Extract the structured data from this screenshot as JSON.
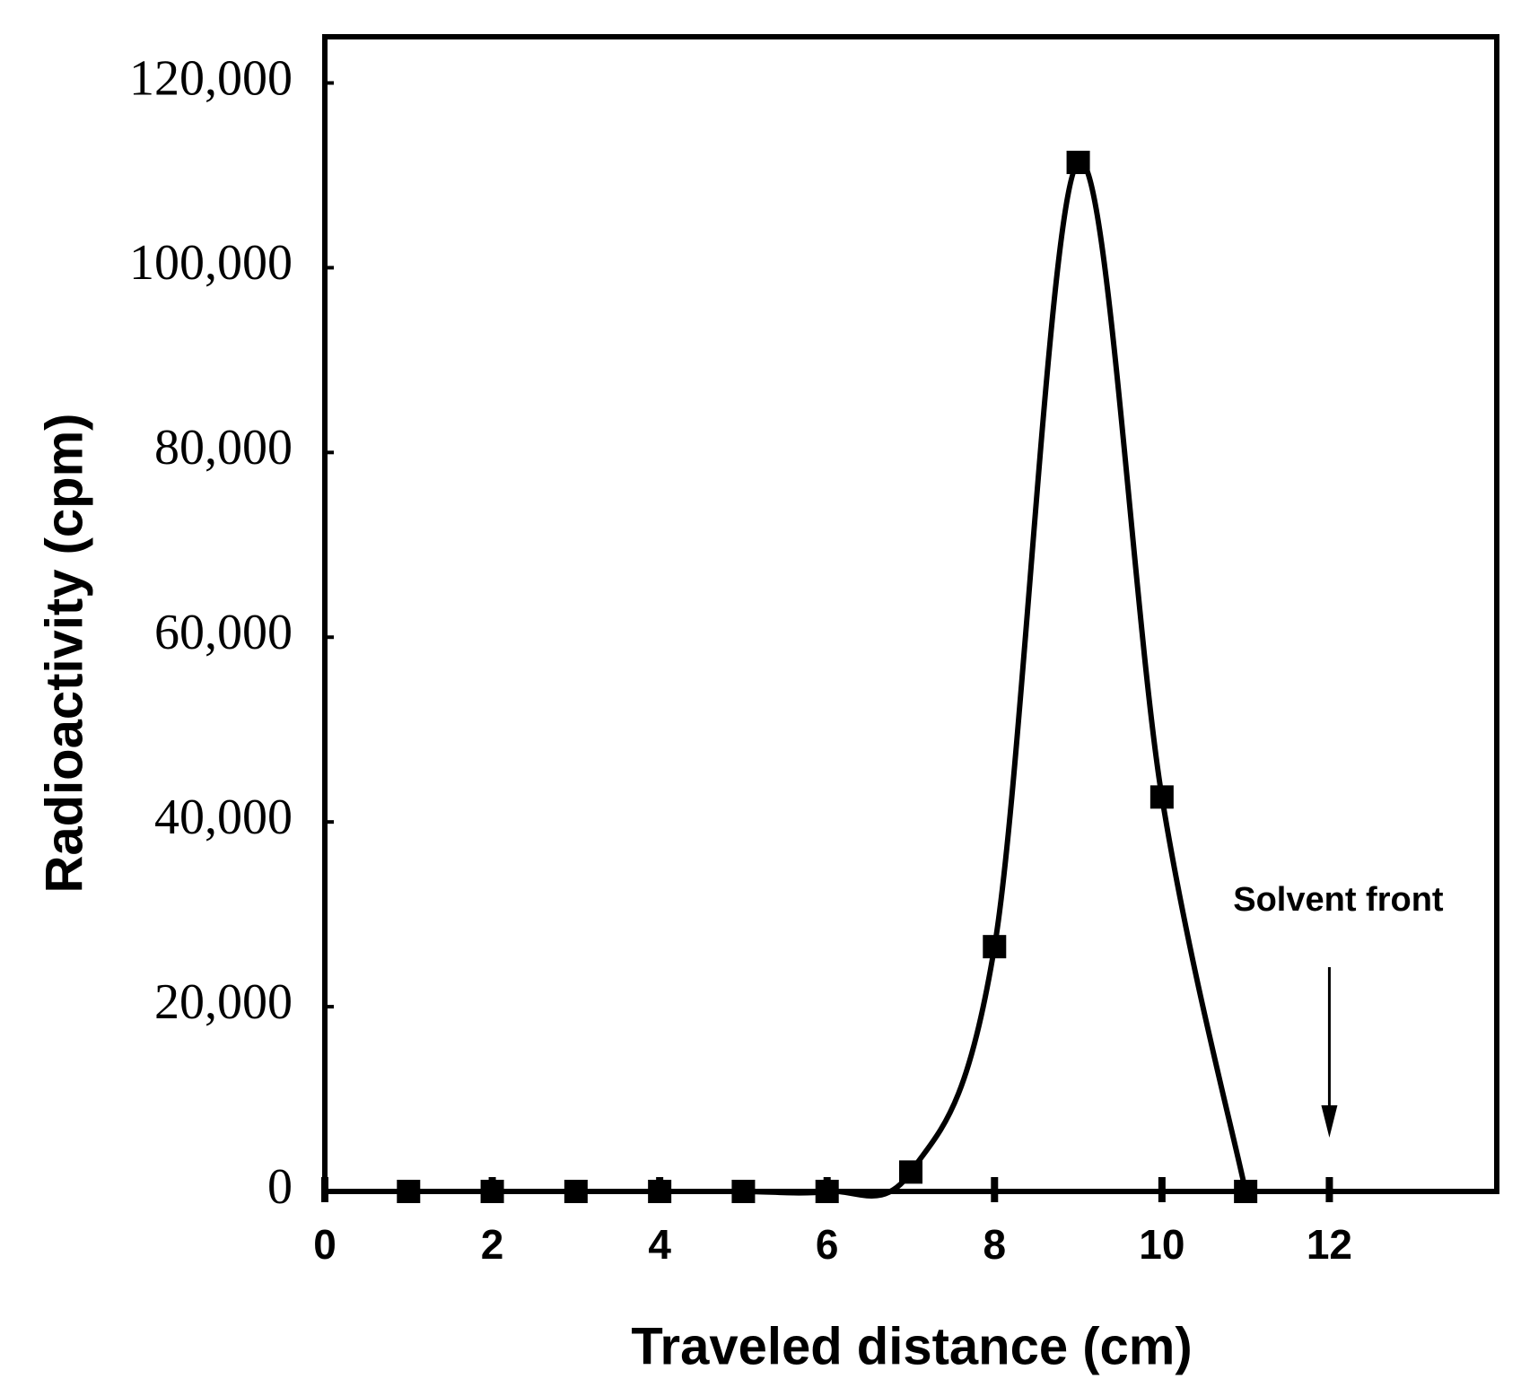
{
  "chart_data": {
    "type": "line",
    "x_label": "Traveled distance (cm)",
    "y_label": "Radioactivity (cpm)",
    "x": [
      1,
      2,
      3,
      4,
      5,
      6,
      7,
      8,
      9,
      10,
      11
    ],
    "series": [
      {
        "name": "Radioactivity",
        "color": "#000000",
        "values": [
          0,
          0,
          0,
          0,
          0,
          0,
          2100,
          26500,
          111400,
          42700,
          0
        ]
      }
    ],
    "xlim": [
      0,
      14
    ],
    "xticks": [
      0,
      2,
      4,
      6,
      8,
      10,
      12
    ],
    "ylim": [
      0,
      125000
    ],
    "yticks": [
      0,
      {
        "value": 20000,
        "label": "20,000"
      },
      {
        "value": 40000,
        "label": "40,000"
      },
      {
        "value": 60000,
        "label": "60,000"
      },
      {
        "value": 80000,
        "label": "80,000"
      },
      {
        "value": 100000,
        "label": "100,000"
      },
      {
        "value": 120000,
        "label": "120,000"
      }
    ],
    "annotation": {
      "text": "Solvent front",
      "x": 12
    }
  }
}
